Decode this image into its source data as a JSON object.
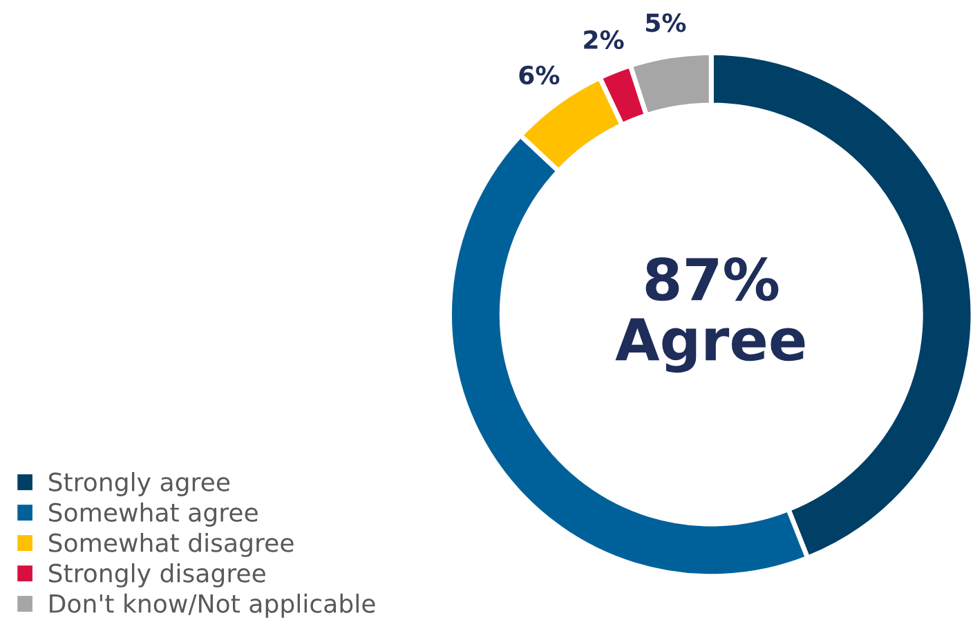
{
  "chart_data": {
    "type": "donut",
    "categories": [
      "Strongly agree",
      "Somewhat agree",
      "Somewhat disagree",
      "Strongly disagree",
      "Don't know/Not applicable"
    ],
    "values": [
      44,
      43,
      6,
      2,
      5
    ],
    "colors": [
      "#003f66",
      "#00619a",
      "#ffc000",
      "#d8103f",
      "#a6a6a6"
    ],
    "value_labels": [
      null,
      null,
      "6%",
      "2%",
      "5%"
    ],
    "annotations": [
      "87%\nAgree"
    ],
    "legend": "bottom left"
  }
}
